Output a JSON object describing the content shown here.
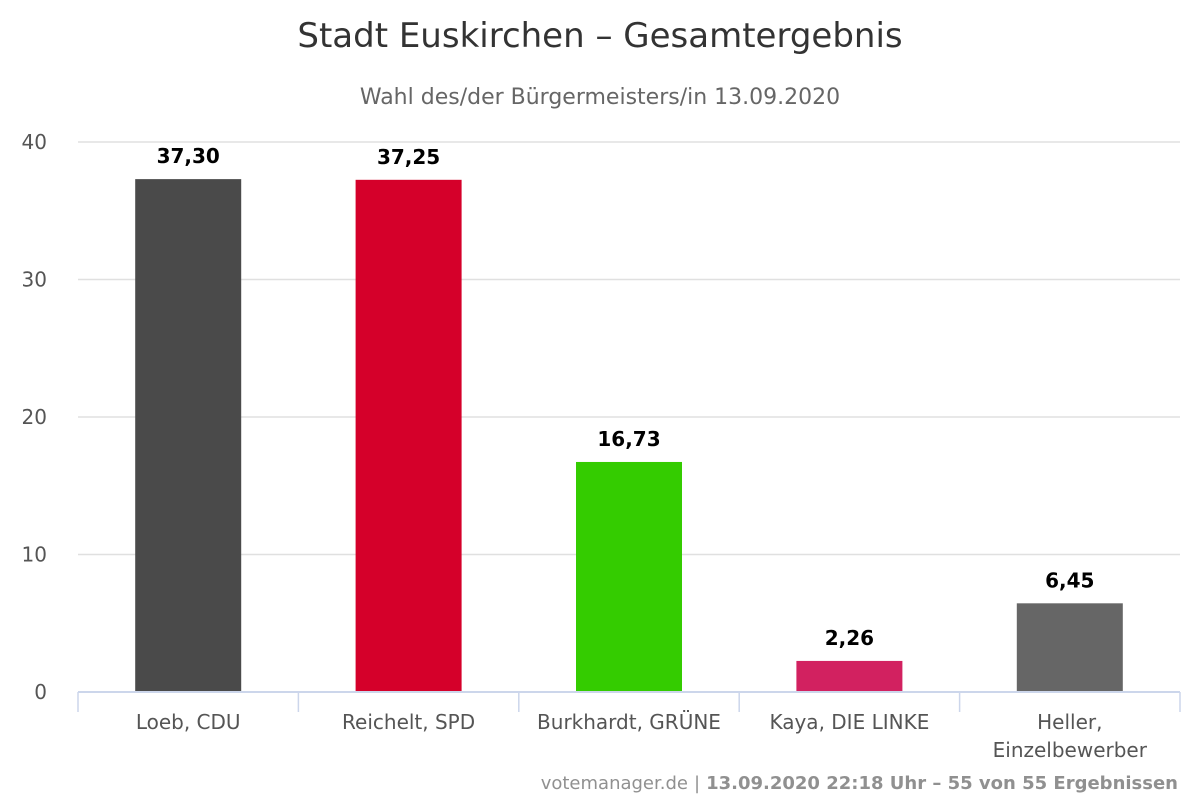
{
  "chart_data": {
    "type": "bar",
    "title": "Stadt Euskirchen – Gesamtergebnis",
    "subtitle": "Wahl des/der Bürgermeisters/in 13.09.2020",
    "xlabel": "",
    "ylabel": "",
    "categories": [
      [
        "Loeb, CDU"
      ],
      [
        "Reichelt, SPD"
      ],
      [
        "Burkhardt, GRÜNE"
      ],
      [
        "Kaya, DIE LINKE"
      ],
      [
        "Heller,",
        "Einzelbewerber"
      ]
    ],
    "values": [
      37.3,
      37.25,
      16.73,
      2.26,
      6.45
    ],
    "value_labels": [
      "37,30",
      "37,25",
      "16,73",
      "2,26",
      "6,45"
    ],
    "colors": [
      "#4a4a4a",
      "#d5002a",
      "#34cc00",
      "#d22160",
      "#666666"
    ],
    "ylim": [
      0,
      40
    ],
    "yticks": [
      0,
      10,
      20,
      30,
      40
    ],
    "grid": true,
    "legend": "none"
  },
  "credits": {
    "site": "votemanager.de",
    "separator": "|",
    "info": "13.09.2020 22:18 Uhr – 55 von 55 Ergebnissen"
  }
}
